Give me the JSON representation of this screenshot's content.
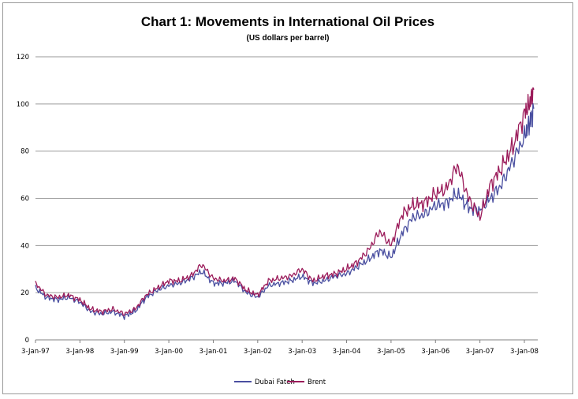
{
  "chart_data": {
    "type": "line",
    "title": "Chart 1: Movements in International Oil Prices",
    "subtitle": "(US dollars per barrel)",
    "xlabel": "",
    "ylabel": "",
    "ylim": [
      0,
      120
    ],
    "yticks": [
      "0",
      "20",
      "40",
      "60",
      "80",
      "100",
      "120"
    ],
    "xticks": [
      "3-Jan-97",
      "3-Jan-98",
      "3-Jan-99",
      "3-Jan-00",
      "3-Jan-01",
      "3-Jan-02",
      "3-Jan-03",
      "3-Jan-04",
      "3-Jan-05",
      "3-Jan-06",
      "3-Jan-07",
      "3-Jan-08"
    ],
    "grid": "horizontal",
    "legend": "bottom",
    "x": [
      "1997-01-03",
      "1997-04-01",
      "1997-07-01",
      "1997-10-01",
      "1998-01-03",
      "1998-04-01",
      "1998-07-01",
      "1998-10-01",
      "1999-01-03",
      "1999-04-01",
      "1999-07-01",
      "1999-10-01",
      "2000-01-03",
      "2000-04-01",
      "2000-07-01",
      "2000-10-01",
      "2001-01-03",
      "2001-04-01",
      "2001-07-01",
      "2001-10-01",
      "2002-01-03",
      "2002-04-01",
      "2002-07-01",
      "2002-10-01",
      "2003-01-03",
      "2003-04-01",
      "2003-07-01",
      "2003-10-01",
      "2004-01-03",
      "2004-04-01",
      "2004-07-01",
      "2004-10-01",
      "2005-01-03",
      "2005-04-01",
      "2005-07-01",
      "2005-10-01",
      "2006-01-03",
      "2006-04-01",
      "2006-07-01",
      "2006-10-01",
      "2007-01-03",
      "2007-04-01",
      "2007-07-01",
      "2007-10-01",
      "2008-01-03",
      "2008-02-15",
      "2008-03-20"
    ],
    "series": [
      {
        "name": "Dubai Fateh",
        "color": "#4a4fa0",
        "values": [
          22,
          18,
          17,
          18,
          16,
          12,
          11,
          12,
          10,
          12,
          18,
          21,
          23,
          24,
          26,
          29,
          24,
          24,
          25,
          20,
          18,
          23,
          24,
          25,
          27,
          24,
          25,
          27,
          28,
          31,
          34,
          38,
          35,
          45,
          52,
          53,
          57,
          58,
          62,
          56,
          55,
          60,
          66,
          76,
          86,
          92,
          98
        ]
      },
      {
        "name": "Brent",
        "color": "#9b1b5a",
        "values": [
          24,
          19,
          18,
          19,
          17,
          13,
          12,
          13,
          11,
          13,
          19,
          22,
          25,
          25,
          27,
          32,
          26,
          25,
          26,
          21,
          19,
          25,
          26,
          27,
          30,
          25,
          27,
          28,
          30,
          33,
          38,
          46,
          40,
          53,
          57,
          58,
          62,
          64,
          74,
          60,
          52,
          66,
          73,
          82,
          96,
          100,
          106
        ]
      }
    ]
  }
}
